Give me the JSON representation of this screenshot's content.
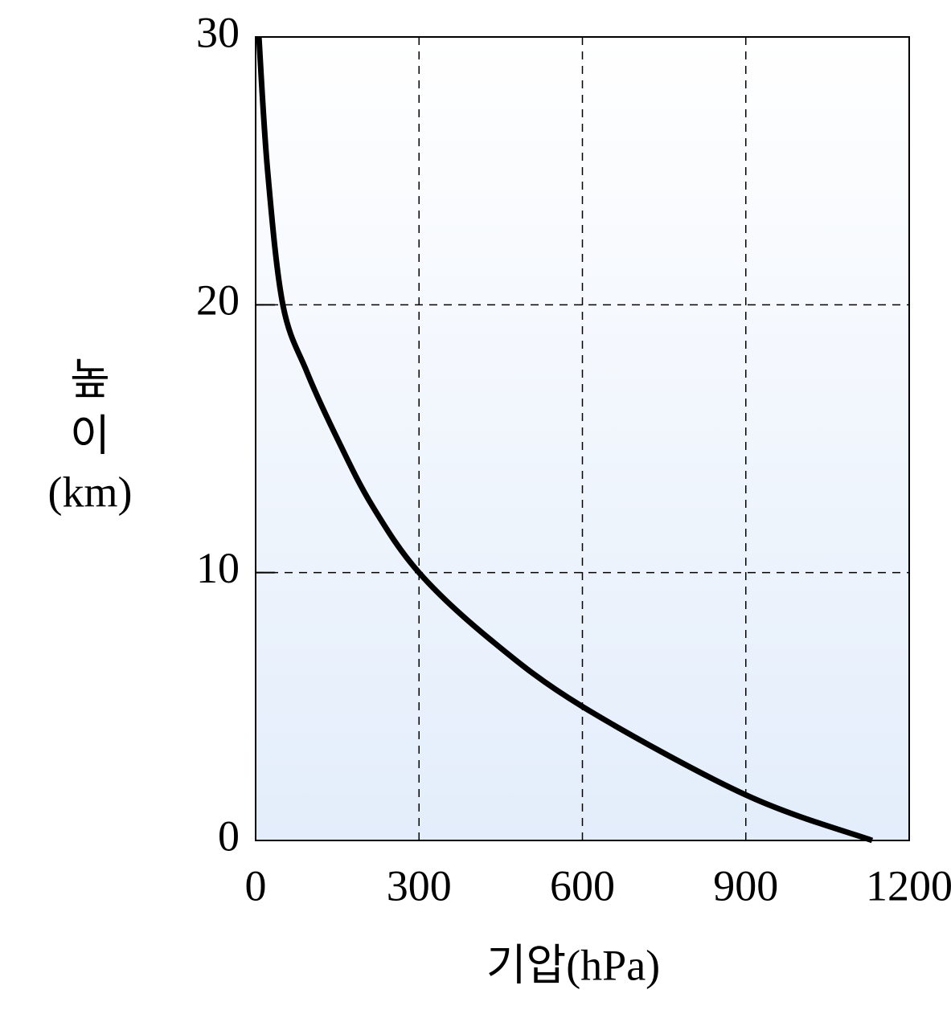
{
  "chart_data": {
    "type": "line",
    "xlabel": "기압(hPa)",
    "ylabel": [
      "높",
      "이",
      "(km)"
    ],
    "x": [
      6,
      22,
      50,
      94,
      150,
      214,
      300,
      431,
      600,
      900,
      1132
    ],
    "series": [
      {
        "color": "#000000",
        "values": [
          30,
          25,
          20,
          17.5,
          15,
          12.5,
          10,
          7.5,
          5,
          1.7,
          0
        ]
      }
    ],
    "xlim": [
      0,
      1200
    ],
    "xticks": [
      0,
      300,
      600,
      900,
      1200
    ],
    "ylim": [
      0,
      30
    ],
    "yticks": [
      0,
      10,
      20,
      30
    ],
    "grid": true
  }
}
